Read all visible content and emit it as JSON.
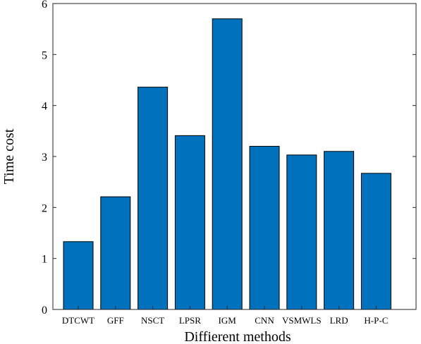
{
  "chart_data": {
    "type": "bar",
    "title": "",
    "xlabel": "Diffierent methods",
    "ylabel": "Time cost",
    "categories": [
      "DTCWT",
      "GFF",
      "NSCT",
      "LPSR",
      "IGM",
      "CNN",
      "VSMWLS",
      "LRD",
      "H-P-C"
    ],
    "values": [
      1.33,
      2.21,
      4.36,
      3.41,
      5.7,
      3.2,
      3.03,
      3.1,
      2.67
    ],
    "ylim": [
      0,
      6
    ],
    "yticks": [
      0,
      1,
      2,
      3,
      4,
      5,
      6
    ],
    "grid": false,
    "legend": "none",
    "bar_color": "#0072BD",
    "bar_edge_color": "#000000",
    "axis_color": "#262626"
  }
}
